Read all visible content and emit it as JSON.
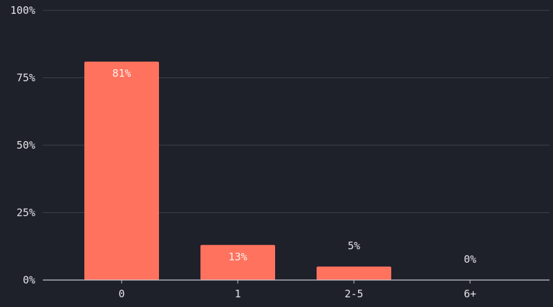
{
  "chart_data": {
    "type": "bar",
    "title": "",
    "xlabel": "",
    "ylabel": "",
    "categories": [
      "0",
      "1",
      "2-5",
      "6+"
    ],
    "values": [
      81,
      13,
      5,
      0
    ],
    "data_labels": [
      "81%",
      "13%",
      "5%",
      "0%"
    ],
    "ylim": [
      0,
      100
    ],
    "y_ticks": [
      0,
      25,
      50,
      75,
      100
    ],
    "y_tick_labels": [
      "0%",
      "25%",
      "50%",
      "75%",
      "100%"
    ],
    "grid": true,
    "legend": "none"
  },
  "colors": {
    "background": "#1e202a",
    "bar": "#fe725e",
    "grid": "#3d404b",
    "axis": "#c9c9d0",
    "text": "#e4e4e8"
  }
}
